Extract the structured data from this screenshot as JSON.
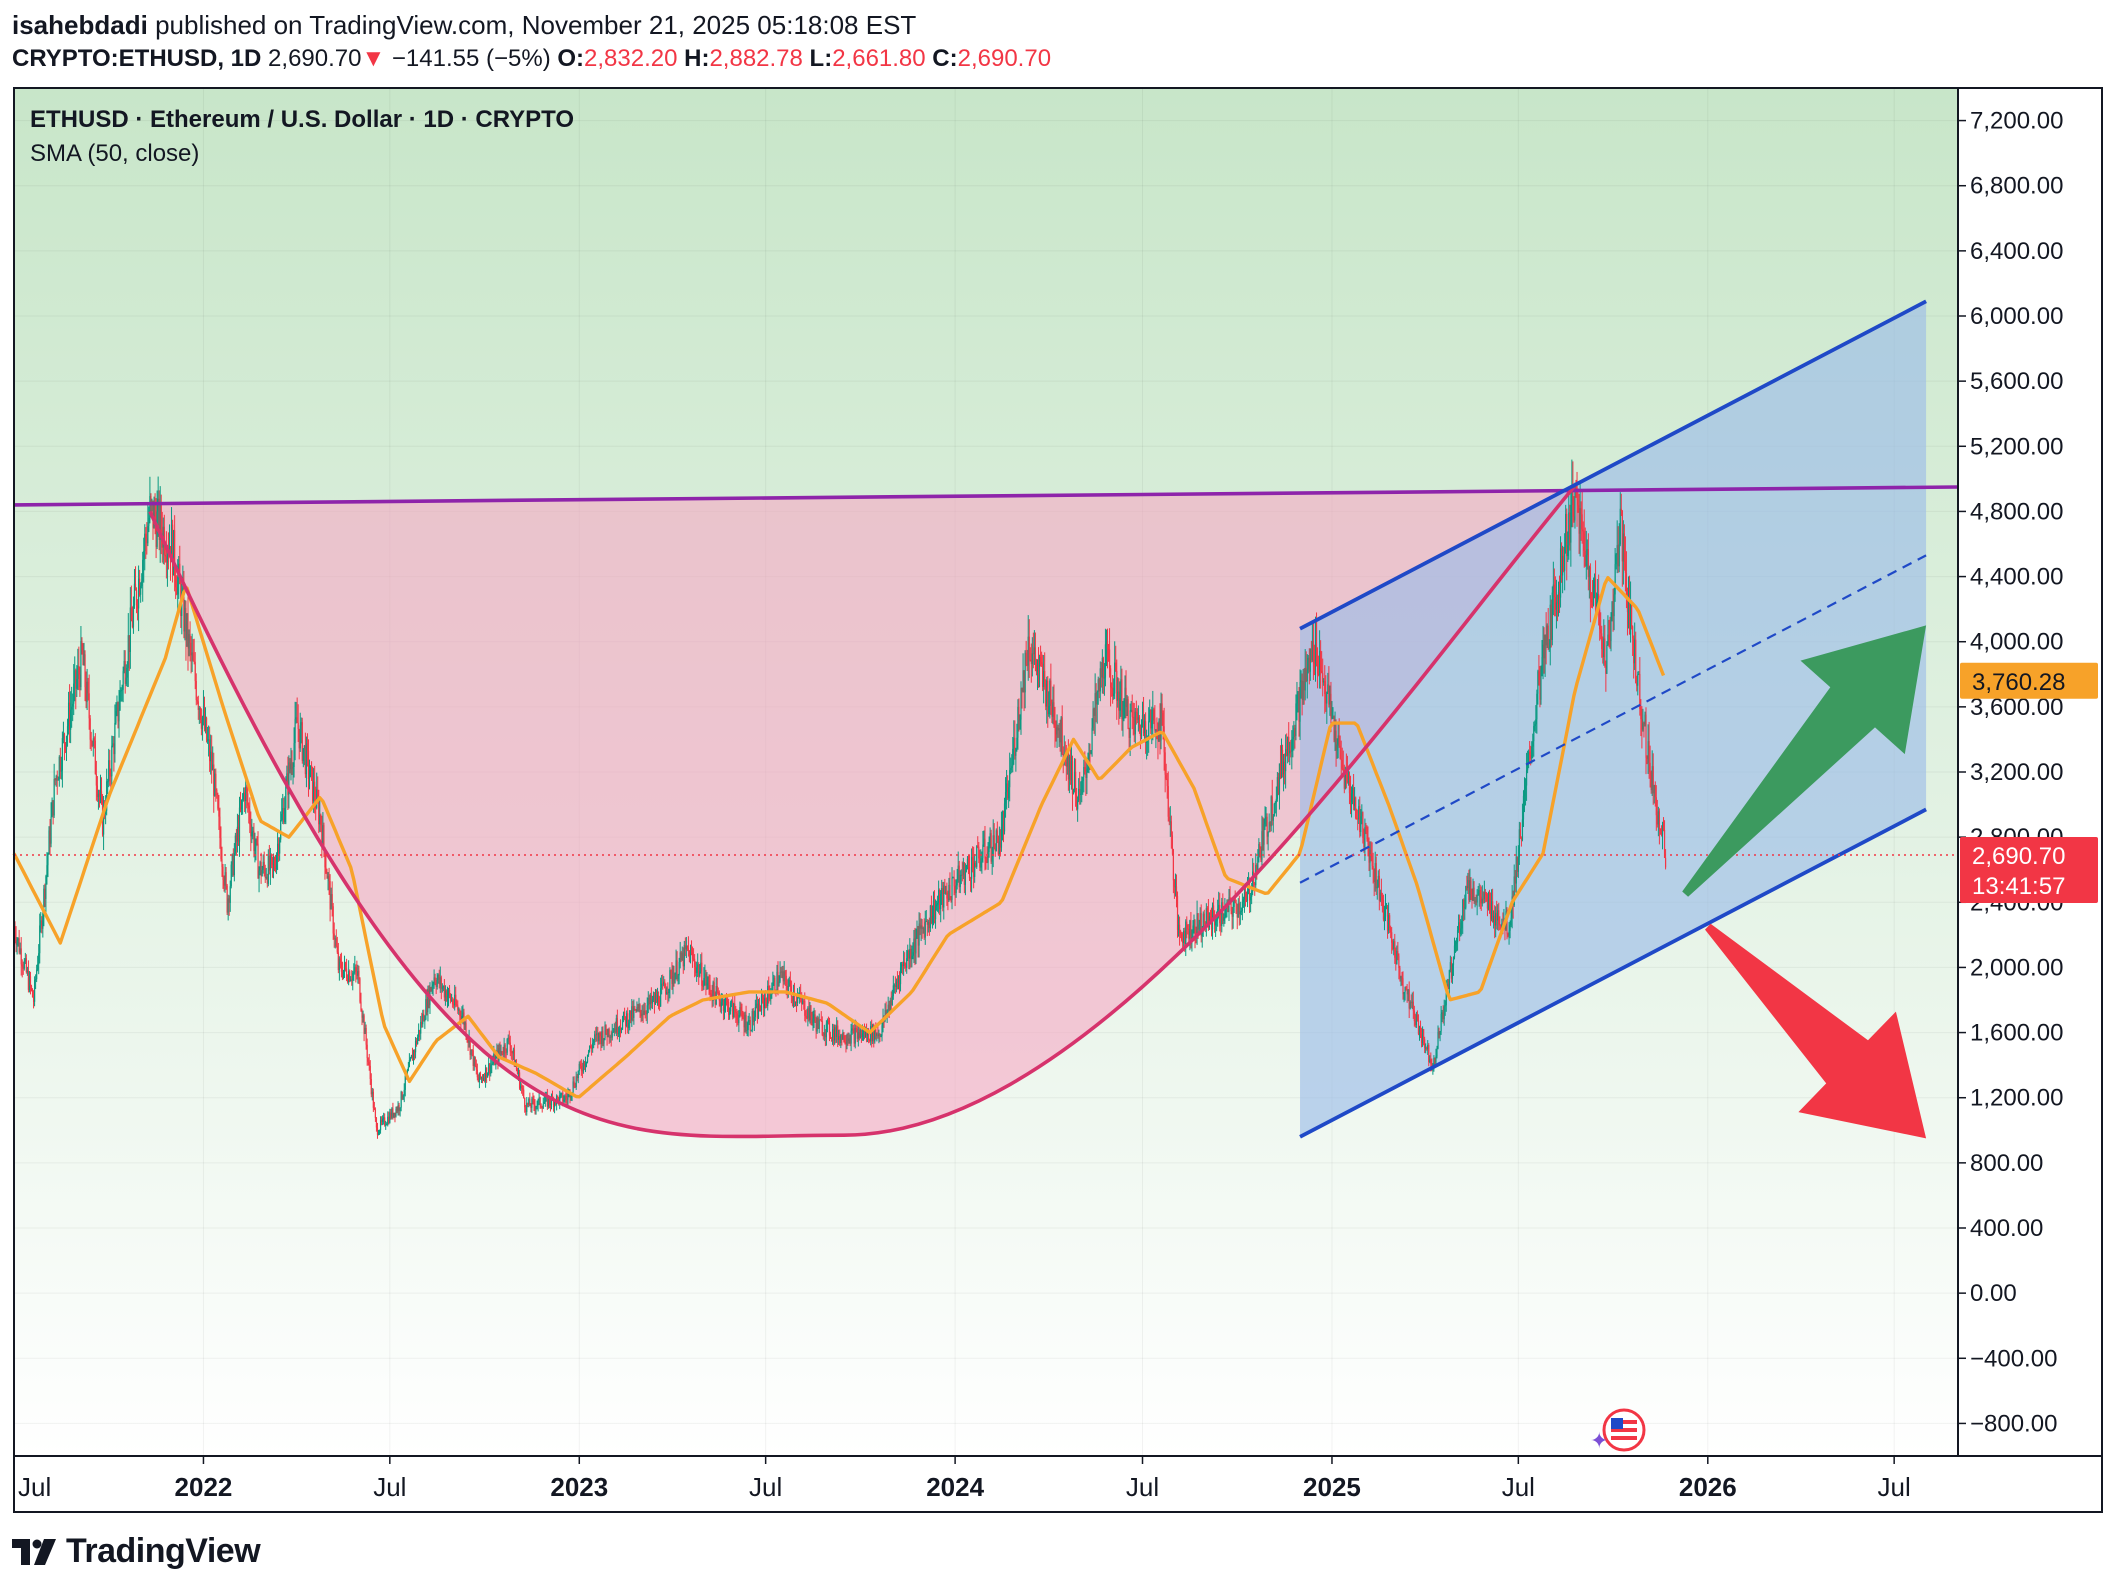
{
  "header": {
    "author": "isahebdadi",
    "published_text": "published on TradingView.com, November 21, 2025 05:18:08 EST",
    "symbol": "CRYPTO:ETHUSD, 1D",
    "last": "2,690.70",
    "change": "−141.55 (−5%)",
    "o_label": "O:",
    "o_value": "2,832.20",
    "h_label": "H:",
    "h_value": "2,882.78",
    "l_label": "L:",
    "l_value": "2,661.80",
    "c_label": "C:",
    "c_value": "2,690.70"
  },
  "legend": {
    "title": "ETHUSD · Ethereum / U.S. Dollar · 1D · CRYPTO",
    "indicator": "SMA (50, close)"
  },
  "price_axis": {
    "labels": [
      "7,200.00",
      "6,800.00",
      "6,400.00",
      "6,000.00",
      "5,600.00",
      "5,200.00",
      "4,800.00",
      "4,400.00",
      "4,000.00",
      "3,600.00",
      "3,200.00",
      "2,800.00",
      "2,400.00",
      "2,000.00",
      "1,600.00",
      "1,200.00",
      "800.00",
      "400.00",
      "0.00",
      "−400.00",
      "−800.00"
    ],
    "sma_tag": "3,760.28",
    "price_tag": "2,690.70",
    "countdown": "13:41:57"
  },
  "time_axis": {
    "labels": [
      {
        "text": "Jul",
        "bold": false
      },
      {
        "text": "2022",
        "bold": true
      },
      {
        "text": "Jul",
        "bold": false
      },
      {
        "text": "2023",
        "bold": true
      },
      {
        "text": "Jul",
        "bold": false
      },
      {
        "text": "2024",
        "bold": true
      },
      {
        "text": "Jul",
        "bold": false
      },
      {
        "text": "2025",
        "bold": true
      },
      {
        "text": "Jul",
        "bold": false
      },
      {
        "text": "2026",
        "bold": true
      },
      {
        "text": "Jul",
        "bold": false
      }
    ]
  },
  "colors": {
    "candle_up": "#089981",
    "candle_down": "#f23645",
    "sma": "#f7a229",
    "cup": "#d6336c",
    "resistance": "#8e24aa",
    "channel": "#1f49c7",
    "bull_arrow": "#3c9a5f",
    "bear_arrow": "#f23645",
    "price_tag_bg": "#f23645",
    "sma_tag_bg": "#f7a229"
  },
  "brand": {
    "name": "TradingView"
  },
  "chart_data": {
    "type": "candlestick",
    "title": "ETHUSD · Ethereum / U.S. Dollar · 1D · CRYPTO",
    "ylim": [
      -1000,
      7400
    ],
    "x_range": [
      "2021-07",
      "2026-09"
    ],
    "close_path": [
      [
        "2021-07-01",
        2250
      ],
      [
        "2021-07-20",
        1800
      ],
      [
        "2021-08-10",
        3150
      ],
      [
        "2021-09-05",
        3900
      ],
      [
        "2021-09-25",
        2900
      ],
      [
        "2021-10-15",
        3800
      ],
      [
        "2021-11-10",
        4800
      ],
      [
        "2021-12-01",
        4600
      ],
      [
        "2021-12-20",
        3900
      ],
      [
        "2022-01-10",
        3200
      ],
      [
        "2022-01-24",
        2400
      ],
      [
        "2022-02-10",
        3100
      ],
      [
        "2022-02-24",
        2600
      ],
      [
        "2022-03-10",
        2600
      ],
      [
        "2022-04-02",
        3500
      ],
      [
        "2022-04-25",
        2900
      ],
      [
        "2022-05-12",
        2000
      ],
      [
        "2022-05-31",
        1950
      ],
      [
        "2022-06-18",
        1000
      ],
      [
        "2022-07-10",
        1150
      ],
      [
        "2022-08-13",
        1950
      ],
      [
        "2022-09-10",
        1700
      ],
      [
        "2022-09-25",
        1300
      ],
      [
        "2022-10-25",
        1550
      ],
      [
        "2022-11-10",
        1150
      ],
      [
        "2022-12-20",
        1200
      ],
      [
        "2023-01-15",
        1550
      ],
      [
        "2023-02-20",
        1700
      ],
      [
        "2023-03-18",
        1800
      ],
      [
        "2023-04-16",
        2100
      ],
      [
        "2023-05-10",
        1850
      ],
      [
        "2023-06-15",
        1650
      ],
      [
        "2023-07-15",
        1950
      ],
      [
        "2023-08-20",
        1650
      ],
      [
        "2023-09-12",
        1580
      ],
      [
        "2023-10-20",
        1600
      ],
      [
        "2023-11-10",
        2000
      ],
      [
        "2023-12-10",
        2350
      ],
      [
        "2024-01-12",
        2600
      ],
      [
        "2024-02-15",
        2800
      ],
      [
        "2024-03-12",
        4000
      ],
      [
        "2024-04-10",
        3500
      ],
      [
        "2024-05-01",
        3000
      ],
      [
        "2024-05-25",
        3900
      ],
      [
        "2024-06-20",
        3500
      ],
      [
        "2024-07-20",
        3500
      ],
      [
        "2024-08-05",
        2200
      ],
      [
        "2024-09-06",
        2300
      ],
      [
        "2024-10-10",
        2400
      ],
      [
        "2024-11-12",
        3200
      ],
      [
        "2024-12-16",
        4000
      ],
      [
        "2025-01-10",
        3250
      ],
      [
        "2025-02-03",
        2800
      ],
      [
        "2025-03-11",
        1900
      ],
      [
        "2025-04-09",
        1400
      ],
      [
        "2025-05-12",
        2500
      ],
      [
        "2025-06-22",
        2250
      ],
      [
        "2025-07-20",
        3700
      ],
      [
        "2025-08-24",
        4900
      ],
      [
        "2025-09-25",
        3900
      ],
      [
        "2025-10-08",
        4700
      ],
      [
        "2025-10-20",
        4000
      ],
      [
        "2025-11-04",
        3300
      ],
      [
        "2025-11-21",
        2690
      ]
    ],
    "sma_50_path": [
      [
        "2021-07-01",
        2700
      ],
      [
        "2021-08-15",
        2150
      ],
      [
        "2021-10-01",
        3050
      ],
      [
        "2021-11-25",
        3900
      ],
      [
        "2021-12-15",
        4350
      ],
      [
        "2022-01-20",
        3600
      ],
      [
        "2022-02-25",
        2900
      ],
      [
        "2022-03-25",
        2800
      ],
      [
        "2022-04-25",
        3050
      ],
      [
        "2022-05-25",
        2600
      ],
      [
        "2022-06-25",
        1650
      ],
      [
        "2022-07-20",
        1300
      ],
      [
        "2022-08-15",
        1550
      ],
      [
        "2022-09-15",
        1700
      ],
      [
        "2022-10-15",
        1450
      ],
      [
        "2022-11-20",
        1350
      ],
      [
        "2022-12-31",
        1200
      ],
      [
        "2023-02-15",
        1450
      ],
      [
        "2023-03-30",
        1700
      ],
      [
        "2023-05-01",
        1800
      ],
      [
        "2023-06-15",
        1850
      ],
      [
        "2023-07-20",
        1850
      ],
      [
        "2023-08-30",
        1780
      ],
      [
        "2023-10-10",
        1600
      ],
      [
        "2023-11-20",
        1850
      ],
      [
        "2023-12-25",
        2200
      ],
      [
        "2024-02-15",
        2400
      ],
      [
        "2024-03-25",
        3000
      ],
      [
        "2024-04-25",
        3400
      ],
      [
        "2024-05-20",
        3150
      ],
      [
        "2024-06-20",
        3350
      ],
      [
        "2024-07-20",
        3450
      ],
      [
        "2024-08-20",
        3100
      ],
      [
        "2024-09-20",
        2550
      ],
      [
        "2024-10-30",
        2450
      ],
      [
        "2024-12-01",
        2700
      ],
      [
        "2024-12-31",
        3500
      ],
      [
        "2025-01-25",
        3500
      ],
      [
        "2025-02-25",
        3000
      ],
      [
        "2025-03-25",
        2500
      ],
      [
        "2025-04-25",
        1800
      ],
      [
        "2025-05-25",
        1850
      ],
      [
        "2025-06-25",
        2400
      ],
      [
        "2025-07-25",
        2700
      ],
      [
        "2025-08-25",
        3700
      ],
      [
        "2025-09-25",
        4400
      ],
      [
        "2025-10-25",
        4200
      ],
      [
        "2025-11-21",
        3760
      ]
    ],
    "last_close": 2690.7,
    "sma_last": 3760.28,
    "annotations": {
      "resistance_line": [
        [
          "2021-07-01",
          4840
        ],
        [
          "2026-09-01",
          4950
        ]
      ],
      "cup_curve": {
        "left": [
          "2021-11-10",
          4800
        ],
        "bottom": [
          "2023-09-15",
          970
        ],
        "right": [
          "2025-08-24",
          4950
        ]
      },
      "rising_channel": {
        "upper": [
          [
            "2024-12-01",
            4080
          ],
          [
            "2026-08-01",
            6090
          ]
        ],
        "lower": [
          [
            "2024-12-01",
            960
          ],
          [
            "2026-08-01",
            2970
          ]
        ],
        "mid": [
          [
            "2024-12-01",
            2520
          ],
          [
            "2026-08-01",
            4530
          ]
        ]
      },
      "arrows": [
        {
          "direction": "up",
          "from": [
            "2025-12-10",
            2450
          ],
          "to": [
            "2026-08-01",
            4100
          ]
        },
        {
          "direction": "down",
          "from": [
            "2026-01-01",
            2250
          ],
          "to": [
            "2026-08-01",
            950
          ]
        }
      ]
    }
  }
}
